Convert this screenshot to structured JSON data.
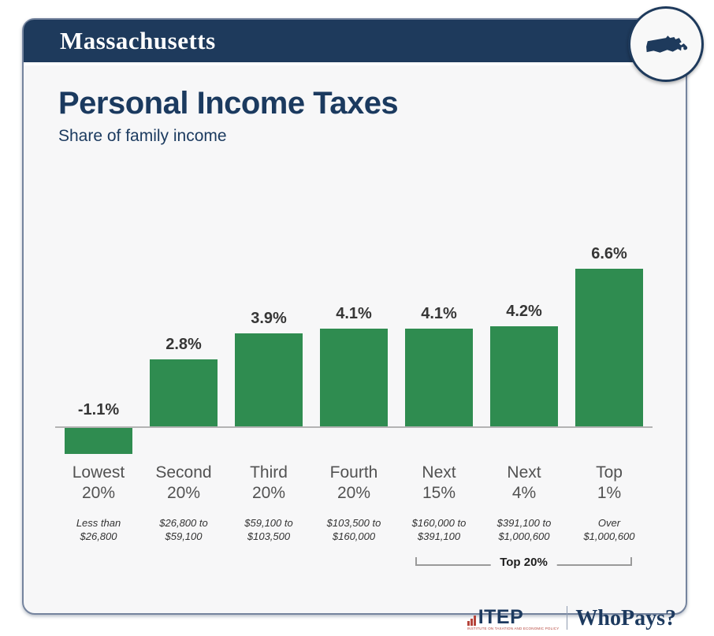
{
  "header": {
    "state": "Massachusetts"
  },
  "badge": {
    "icon": "massachusetts-state-icon"
  },
  "main": {
    "title": "Personal Income Taxes",
    "subtitle": "Share of family income"
  },
  "chart_data": {
    "type": "bar",
    "title": "Personal Income Taxes",
    "subtitle": "Share of family income",
    "unit": "%",
    "ylim": [
      -2,
      7
    ],
    "grid": false,
    "legend": "none",
    "bar_color": "#2f8c50",
    "categories": [
      "Lowest 20%",
      "Second 20%",
      "Third 20%",
      "Fourth 20%",
      "Next 15%",
      "Next 4%",
      "Top 1%"
    ],
    "values": [
      -1.1,
      2.8,
      3.9,
      4.1,
      4.1,
      4.2,
      6.6
    ],
    "value_labels": [
      "-1.1%",
      "2.8%",
      "3.9%",
      "4.1%",
      "4.1%",
      "4.2%",
      "6.6%"
    ],
    "groups": [
      {
        "label_line1": "Lowest",
        "label_line2": "20%",
        "range_line1": "Less than",
        "range_line2": "$26,800"
      },
      {
        "label_line1": "Second",
        "label_line2": "20%",
        "range_line1": "$26,800 to",
        "range_line2": "$59,100"
      },
      {
        "label_line1": "Third",
        "label_line2": "20%",
        "range_line1": "$59,100 to",
        "range_line2": "$103,500"
      },
      {
        "label_line1": "Fourth",
        "label_line2": "20%",
        "range_line1": "$103,500 to",
        "range_line2": "$160,000"
      },
      {
        "label_line1": "Next",
        "label_line2": "15%",
        "range_line1": "$160,000 to",
        "range_line2": "$391,100"
      },
      {
        "label_line1": "Next",
        "label_line2": "4%",
        "range_line1": "$391,100 to",
        "range_line2": "$1,000,600"
      },
      {
        "label_line1": "Top",
        "label_line2": "1%",
        "range_line1": "Over",
        "range_line2": "$1,000,600"
      }
    ],
    "bracket": {
      "label": "Top 20%",
      "start_group": 4,
      "end_group": 6
    }
  },
  "footer": {
    "itep_logo": "ITEP",
    "itep_tagline": "INSTITUTE ON TAXATION AND ECONOMIC POLICY",
    "whopays_logo": "WhoPays?"
  },
  "colors": {
    "navy": "#1e3a5c",
    "green": "#2f8c50",
    "card_background": "#f7f7f8",
    "card_border": "#75849e",
    "axis_line": "#b3b3b3",
    "itep_red": "#b5443b"
  }
}
